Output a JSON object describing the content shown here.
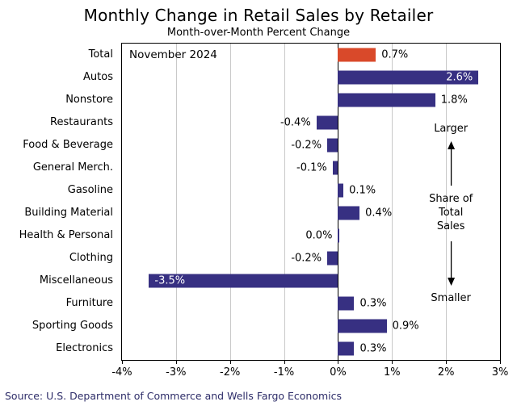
{
  "title": "Monthly Change in Retail Sales by Retailer",
  "subtitle": "Month-over-Month Percent Change",
  "annotation_date": "November 2024",
  "source": "Source: U.S. Department of Commerce and Wells Fargo Economics",
  "share_annotation": {
    "top": "Larger",
    "middle_line1": "Share of",
    "middle_line2": "Total Sales",
    "bottom": "Smaller"
  },
  "colors": {
    "bar": "#373082",
    "highlight": "#d9492a",
    "grid": "#c9c9c9",
    "source_text": "#2e2d69"
  },
  "chart_data": {
    "type": "bar",
    "orientation": "horizontal",
    "title": "Monthly Change in Retail Sales by Retailer",
    "subtitle": "Month-over-Month Percent Change",
    "period": "November 2024",
    "xlim": [
      -4,
      3
    ],
    "grid": true,
    "ticks": [
      {
        "value": -4,
        "label": "-4%"
      },
      {
        "value": -3,
        "label": "-3%"
      },
      {
        "value": -2,
        "label": "-2%"
      },
      {
        "value": -1,
        "label": "-1%"
      },
      {
        "value": 0,
        "label": "0%"
      },
      {
        "value": 1,
        "label": "1%"
      },
      {
        "value": 2,
        "label": "2%"
      },
      {
        "value": 3,
        "label": "3%"
      }
    ],
    "rows": [
      {
        "label": "Total",
        "value": 0.7,
        "display": "0.7%",
        "color": "highlight",
        "inside": false
      },
      {
        "label": "Autos",
        "value": 2.6,
        "display": "2.6%",
        "color": "bar",
        "inside": true
      },
      {
        "label": "Nonstore",
        "value": 1.8,
        "display": "1.8%",
        "color": "bar",
        "inside": false
      },
      {
        "label": "Restaurants",
        "value": -0.4,
        "display": "-0.4%",
        "color": "bar",
        "inside": false
      },
      {
        "label": "Food & Beverage",
        "value": -0.2,
        "display": "-0.2%",
        "color": "bar",
        "inside": false
      },
      {
        "label": "General Merch.",
        "value": -0.1,
        "display": "-0.1%",
        "color": "bar",
        "inside": false
      },
      {
        "label": "Gasoline",
        "value": 0.1,
        "display": "0.1%",
        "color": "bar",
        "inside": false
      },
      {
        "label": "Building Material",
        "value": 0.4,
        "display": "0.4%",
        "color": "bar",
        "inside": false
      },
      {
        "label": "Health & Personal",
        "value": 0.0,
        "display": "0.0%",
        "color": "bar",
        "inside": false
      },
      {
        "label": "Clothing",
        "value": -0.2,
        "display": "-0.2%",
        "color": "bar",
        "inside": false
      },
      {
        "label": "Miscellaneous",
        "value": -3.5,
        "display": "-3.5%",
        "color": "bar",
        "inside": true
      },
      {
        "label": "Furniture",
        "value": 0.3,
        "display": "0.3%",
        "color": "bar",
        "inside": false
      },
      {
        "label": "Sporting Goods",
        "value": 0.9,
        "display": "0.9%",
        "color": "bar",
        "inside": false
      },
      {
        "label": "Electronics",
        "value": 0.3,
        "display": "0.3%",
        "color": "bar",
        "inside": false
      }
    ]
  }
}
